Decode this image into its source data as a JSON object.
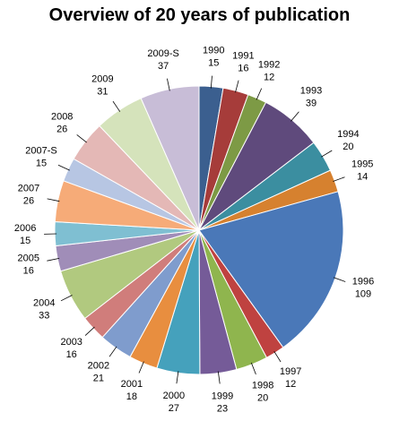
{
  "chart_data": {
    "type": "pie",
    "title": "Overview of 20 years of publication",
    "categories": [
      "1990",
      "1991",
      "1992",
      "1993",
      "1994",
      "1995",
      "1996",
      "1997",
      "1998",
      "1999",
      "2000",
      "2001",
      "2002",
      "2003",
      "2004",
      "2005",
      "2006",
      "2007",
      "2007-S",
      "2008",
      "2009",
      "2009-S"
    ],
    "values": [
      15,
      16,
      12,
      39,
      20,
      14,
      109,
      12,
      20,
      23,
      27,
      18,
      21,
      16,
      33,
      16,
      15,
      26,
      15,
      26,
      31,
      37
    ],
    "colors": [
      "#3b5f8f",
      "#a63c3a",
      "#7d9a45",
      "#5f4a7c",
      "#3b8ea0",
      "#d6812f",
      "#4a78b8",
      "#bf4240",
      "#8fb54e",
      "#755b98",
      "#45a1bc",
      "#e88e3f",
      "#7f9ccd",
      "#d07d7b",
      "#b1c97f",
      "#a08db8",
      "#7fbfd2",
      "#f6ab78",
      "#b7c6e3",
      "#e4b8b6",
      "#d5e3bb",
      "#c8bdd7"
    ],
    "legend": "none",
    "data_labels": "category-and-value"
  }
}
